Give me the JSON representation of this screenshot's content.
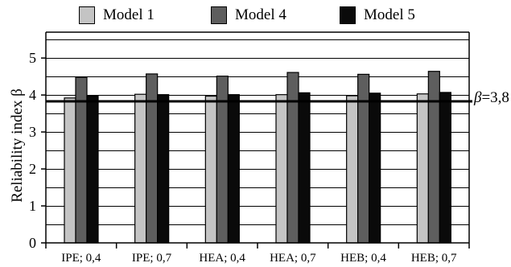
{
  "chart_data": {
    "type": "bar",
    "categories": [
      "IPE; 0,4",
      "IPE; 0,7",
      "HEA; 0,4",
      "HEA; 0,7",
      "HEB; 0,4",
      "HEB; 0,7"
    ],
    "series": [
      {
        "name": "Model 1",
        "color": "#c4c4c4",
        "values": [
          3.92,
          4.02,
          3.97,
          4.01,
          3.98,
          4.03
        ]
      },
      {
        "name": "Model 4",
        "color": "#5e5e5e",
        "values": [
          4.48,
          4.57,
          4.51,
          4.61,
          4.56,
          4.64
        ]
      },
      {
        "name": "Model 5",
        "color": "#0a0a0a",
        "values": [
          3.97,
          4.01,
          4.01,
          4.06,
          4.05,
          4.07
        ]
      }
    ],
    "ylabel": "Reliability index β",
    "ylim": [
      0,
      5.7
    ],
    "yticks": [
      0,
      1,
      2,
      3,
      4,
      5
    ],
    "grid_step": 0.5,
    "grid": true,
    "legend_position": "top",
    "reference_line": {
      "value": 3.83,
      "label_prefix": "β",
      "label_value": "=3,8"
    }
  }
}
